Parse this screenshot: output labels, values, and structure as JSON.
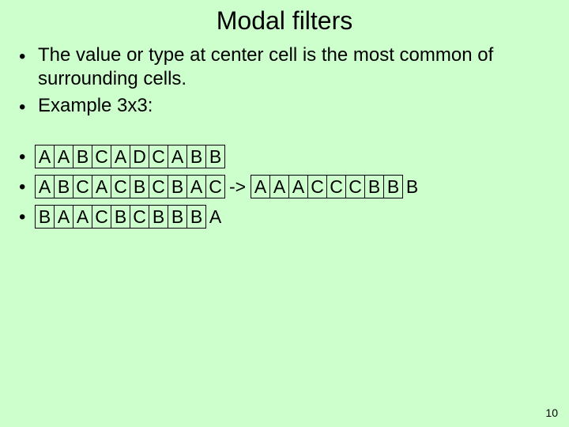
{
  "slide": {
    "title": "Modal filters",
    "page_number": "10",
    "background_color": "#ccffcc",
    "text_color": "#000000",
    "border_color": "#000000",
    "title_fontsize": 32,
    "body_fontsize": 24
  },
  "bullets": {
    "b1": "The value or type at center cell is the most common of surrounding cells.",
    "b2": "Example 3x3:"
  },
  "grid": {
    "row1": [
      "A",
      "A",
      "B",
      "C",
      "A",
      "D",
      "C",
      "A",
      "B",
      "B"
    ],
    "row2": [
      "A",
      "B",
      "C",
      "A",
      "C",
      "B",
      "C",
      "B",
      "A",
      "C"
    ],
    "row3": [
      "B",
      "A",
      "A",
      "C",
      "B",
      "C",
      "B",
      "B",
      "B",
      "A"
    ],
    "arrow": "->",
    "result": [
      "A",
      "A",
      "A",
      "C",
      "C",
      "C",
      "B",
      "B",
      "B"
    ],
    "row1_trailing_plain": false,
    "row3_trailing_plain": true,
    "result_trailing_plain": true
  }
}
